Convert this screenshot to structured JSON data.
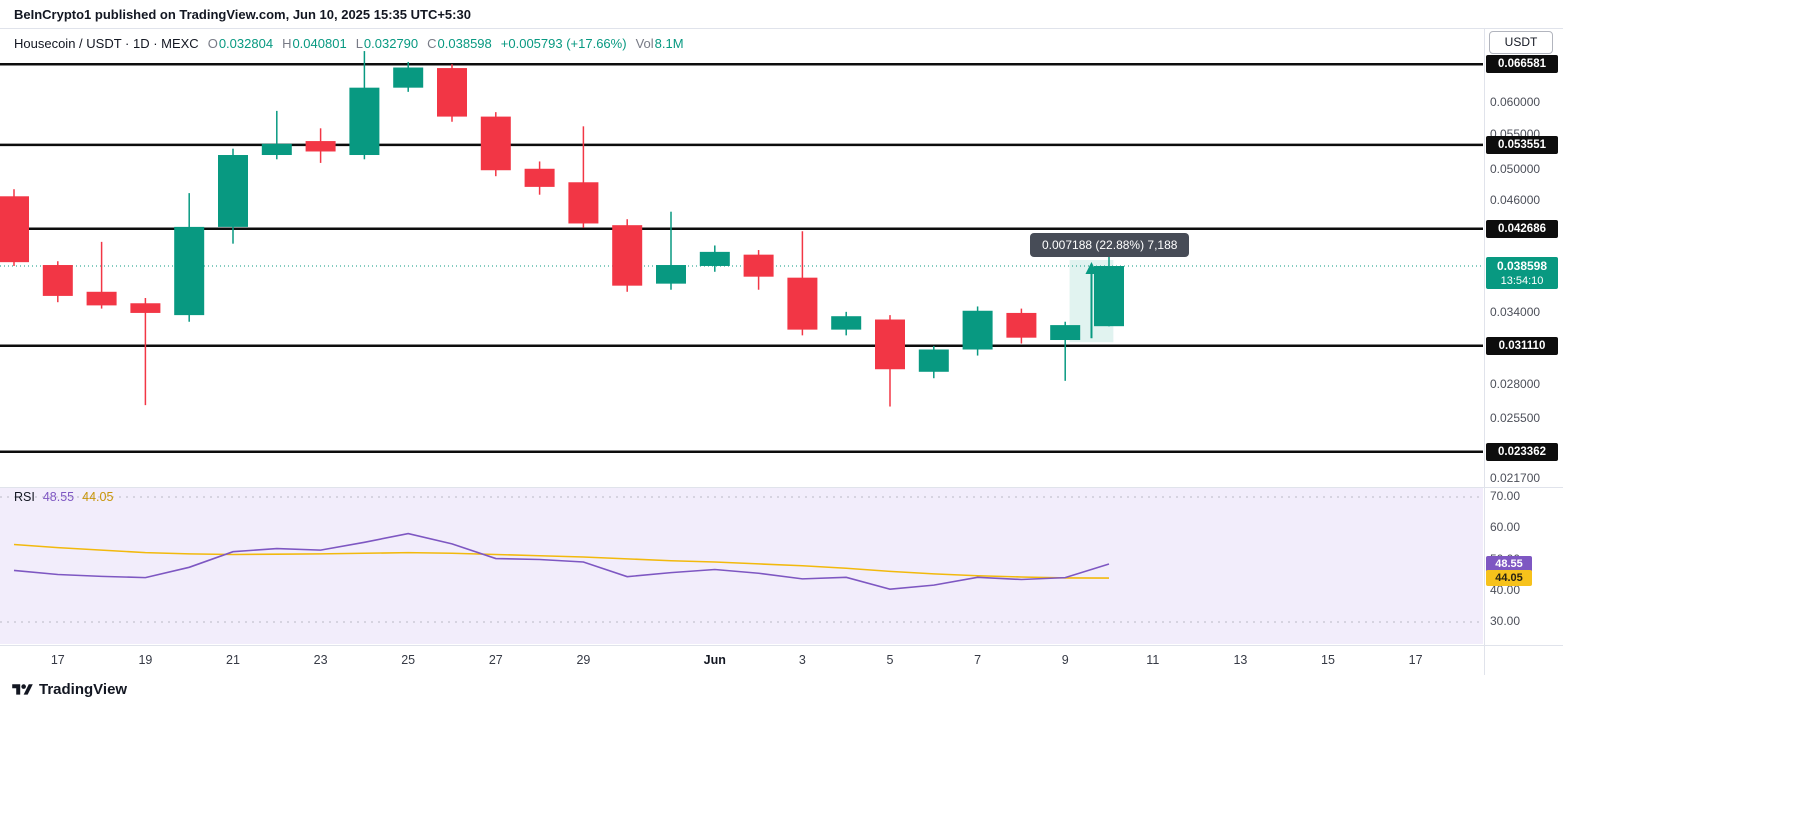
{
  "meta": {
    "attribution": "BeInCrypto1 published on TradingView.com, Jun 10, 2025 15:35 UTC+5:30"
  },
  "legend": {
    "title": "Housecoin / USDT · 1D · MEXC",
    "o_label": "O",
    "o": "0.032804",
    "h_label": "H",
    "h": "0.040801",
    "l_label": "L",
    "l": "0.032790",
    "c_label": "C",
    "c": "0.038598",
    "change": "+0.005793 (+17.66%)",
    "vol_label": "Vol",
    "vol": "8.1M"
  },
  "price_axis": {
    "currency": "USDT",
    "last_price_label": "0.038598",
    "countdown": "13:54:10"
  },
  "tooltip": {
    "text": "0.007188 (22.88%) 7,188"
  },
  "rsi_legend": {
    "label": "RSI",
    "value": "48.55",
    "ma_value": "44.05"
  },
  "footer": {
    "brand": "TradingView"
  },
  "colors": {
    "up": "#089981",
    "down": "#f23645",
    "level_line": "#0c0c0c",
    "rsi": "#7e57c2",
    "rsi_ma": "#f2b90d",
    "rsi_bg": "#f2edfb",
    "measure_fill": "rgba(8,153,129,0.12)",
    "measure_arrow": "#089981",
    "separator": "#e0e3eb"
  },
  "chart_data": {
    "type": "candlestick",
    "title": "Housecoin / USDT Daily Chart",
    "symbol": "Housecoin / USDT",
    "interval": "1D",
    "exchange": "MEXC",
    "scale": "log",
    "last_price": 0.038598,
    "support_resistance_levels": [
      0.066581,
      0.053551,
      0.042686,
      0.03111,
      0.023362
    ],
    "price_axis_ticks": [
      "0.060000",
      "0.055000",
      "0.050000",
      "0.046000",
      "0.034000",
      "0.028000",
      "0.025500",
      "0.021700"
    ],
    "candles": [
      {
        "date": "May 16",
        "o": 0.0466,
        "h": 0.0475,
        "l": 0.0386,
        "c": 0.039
      },
      {
        "date": "May 17",
        "o": 0.0387,
        "h": 0.0391,
        "l": 0.035,
        "c": 0.0356
      },
      {
        "date": "May 18",
        "o": 0.036,
        "h": 0.0412,
        "l": 0.0344,
        "c": 0.0347
      },
      {
        "date": "May 19",
        "o": 0.0349,
        "h": 0.0354,
        "l": 0.0265,
        "c": 0.034
      },
      {
        "date": "May 20",
        "o": 0.0338,
        "h": 0.047,
        "l": 0.0332,
        "c": 0.0429
      },
      {
        "date": "May 21",
        "o": 0.0429,
        "h": 0.053,
        "l": 0.041,
        "c": 0.0521
      },
      {
        "date": "May 22",
        "o": 0.0521,
        "h": 0.0587,
        "l": 0.0515,
        "c": 0.0537
      },
      {
        "date": "May 23",
        "o": 0.0541,
        "h": 0.056,
        "l": 0.051,
        "c": 0.0526
      },
      {
        "date": "May 24",
        "o": 0.0521,
        "h": 0.069,
        "l": 0.0515,
        "c": 0.0625
      },
      {
        "date": "May 25",
        "o": 0.0625,
        "h": 0.067,
        "l": 0.0618,
        "c": 0.066
      },
      {
        "date": "May 26",
        "o": 0.0659,
        "h": 0.0666,
        "l": 0.057,
        "c": 0.0578
      },
      {
        "date": "May 27",
        "o": 0.0578,
        "h": 0.0585,
        "l": 0.0492,
        "c": 0.05
      },
      {
        "date": "May 28",
        "o": 0.0502,
        "h": 0.0512,
        "l": 0.0468,
        "c": 0.0478
      },
      {
        "date": "May 29",
        "o": 0.0484,
        "h": 0.0563,
        "l": 0.0428,
        "c": 0.0433
      },
      {
        "date": "May 30",
        "o": 0.0431,
        "h": 0.0438,
        "l": 0.036,
        "c": 0.0366
      },
      {
        "date": "May 31",
        "o": 0.0368,
        "h": 0.0447,
        "l": 0.0362,
        "c": 0.0387
      },
      {
        "date": "Jun 1",
        "o": 0.0386,
        "h": 0.0408,
        "l": 0.038,
        "c": 0.0401
      },
      {
        "date": "Jun 2",
        "o": 0.0398,
        "h": 0.0403,
        "l": 0.0362,
        "c": 0.0375
      },
      {
        "date": "Jun 3",
        "o": 0.0374,
        "h": 0.0424,
        "l": 0.032,
        "c": 0.0325
      },
      {
        "date": "Jun 4",
        "o": 0.0325,
        "h": 0.0341,
        "l": 0.032,
        "c": 0.0337
      },
      {
        "date": "Jun 5",
        "o": 0.0334,
        "h": 0.0338,
        "l": 0.0264,
        "c": 0.0292
      },
      {
        "date": "Jun 6",
        "o": 0.029,
        "h": 0.0311,
        "l": 0.0285,
        "c": 0.0308
      },
      {
        "date": "Jun 7",
        "o": 0.0308,
        "h": 0.0346,
        "l": 0.0303,
        "c": 0.0342
      },
      {
        "date": "Jun 8",
        "o": 0.034,
        "h": 0.0344,
        "l": 0.0313,
        "c": 0.0318
      },
      {
        "date": "Jun 9",
        "o": 0.0316,
        "h": 0.0332,
        "l": 0.0283,
        "c": 0.0329
      },
      {
        "date": "Jun 10",
        "o": 0.032804,
        "h": 0.040801,
        "l": 0.03279,
        "c": 0.038598
      }
    ],
    "measure": {
      "from_bar": 24.1,
      "to_bar": 25.1,
      "from_price": 0.03141,
      "to_price": 0.038598,
      "label": "0.007188 (22.88%) 7,188"
    },
    "time_labels": [
      {
        "label": "17",
        "bar": 1
      },
      {
        "label": "19",
        "bar": 3
      },
      {
        "label": "21",
        "bar": 5
      },
      {
        "label": "23",
        "bar": 7
      },
      {
        "label": "25",
        "bar": 9
      },
      {
        "label": "27",
        "bar": 11
      },
      {
        "label": "29",
        "bar": 13
      },
      {
        "label": "Jun",
        "bar": 16,
        "bold": true
      },
      {
        "label": "3",
        "bar": 18
      },
      {
        "label": "5",
        "bar": 20
      },
      {
        "label": "7",
        "bar": 22
      },
      {
        "label": "9",
        "bar": 24
      },
      {
        "label": "11",
        "bar": 26
      },
      {
        "label": "13",
        "bar": 28
      },
      {
        "label": "15",
        "bar": 30
      },
      {
        "label": "17",
        "bar": 32
      }
    ],
    "rsi": {
      "values": [
        46.5,
        45.2,
        44.6,
        44.2,
        47.5,
        52.5,
        53.5,
        53.0,
        55.5,
        58.3,
        55.0,
        50.3,
        50.0,
        49.2,
        44.5,
        45.8,
        46.8,
        45.6,
        43.8,
        44.3,
        40.5,
        41.8,
        44.3,
        43.6,
        44.2,
        48.55
      ],
      "ma_values": [
        54.8,
        53.8,
        53.0,
        52.2,
        51.8,
        51.6,
        51.7,
        51.8,
        52.0,
        52.2,
        52.0,
        51.6,
        51.2,
        50.8,
        50.2,
        49.6,
        49.2,
        48.6,
        48.0,
        47.2,
        46.2,
        45.4,
        44.8,
        44.4,
        44.1,
        44.05
      ],
      "last": 48.55,
      "ma_last": 44.05,
      "axis_ticks": [
        70,
        60,
        50,
        40,
        30
      ],
      "band_upper": 70,
      "band_lower": 30
    }
  }
}
